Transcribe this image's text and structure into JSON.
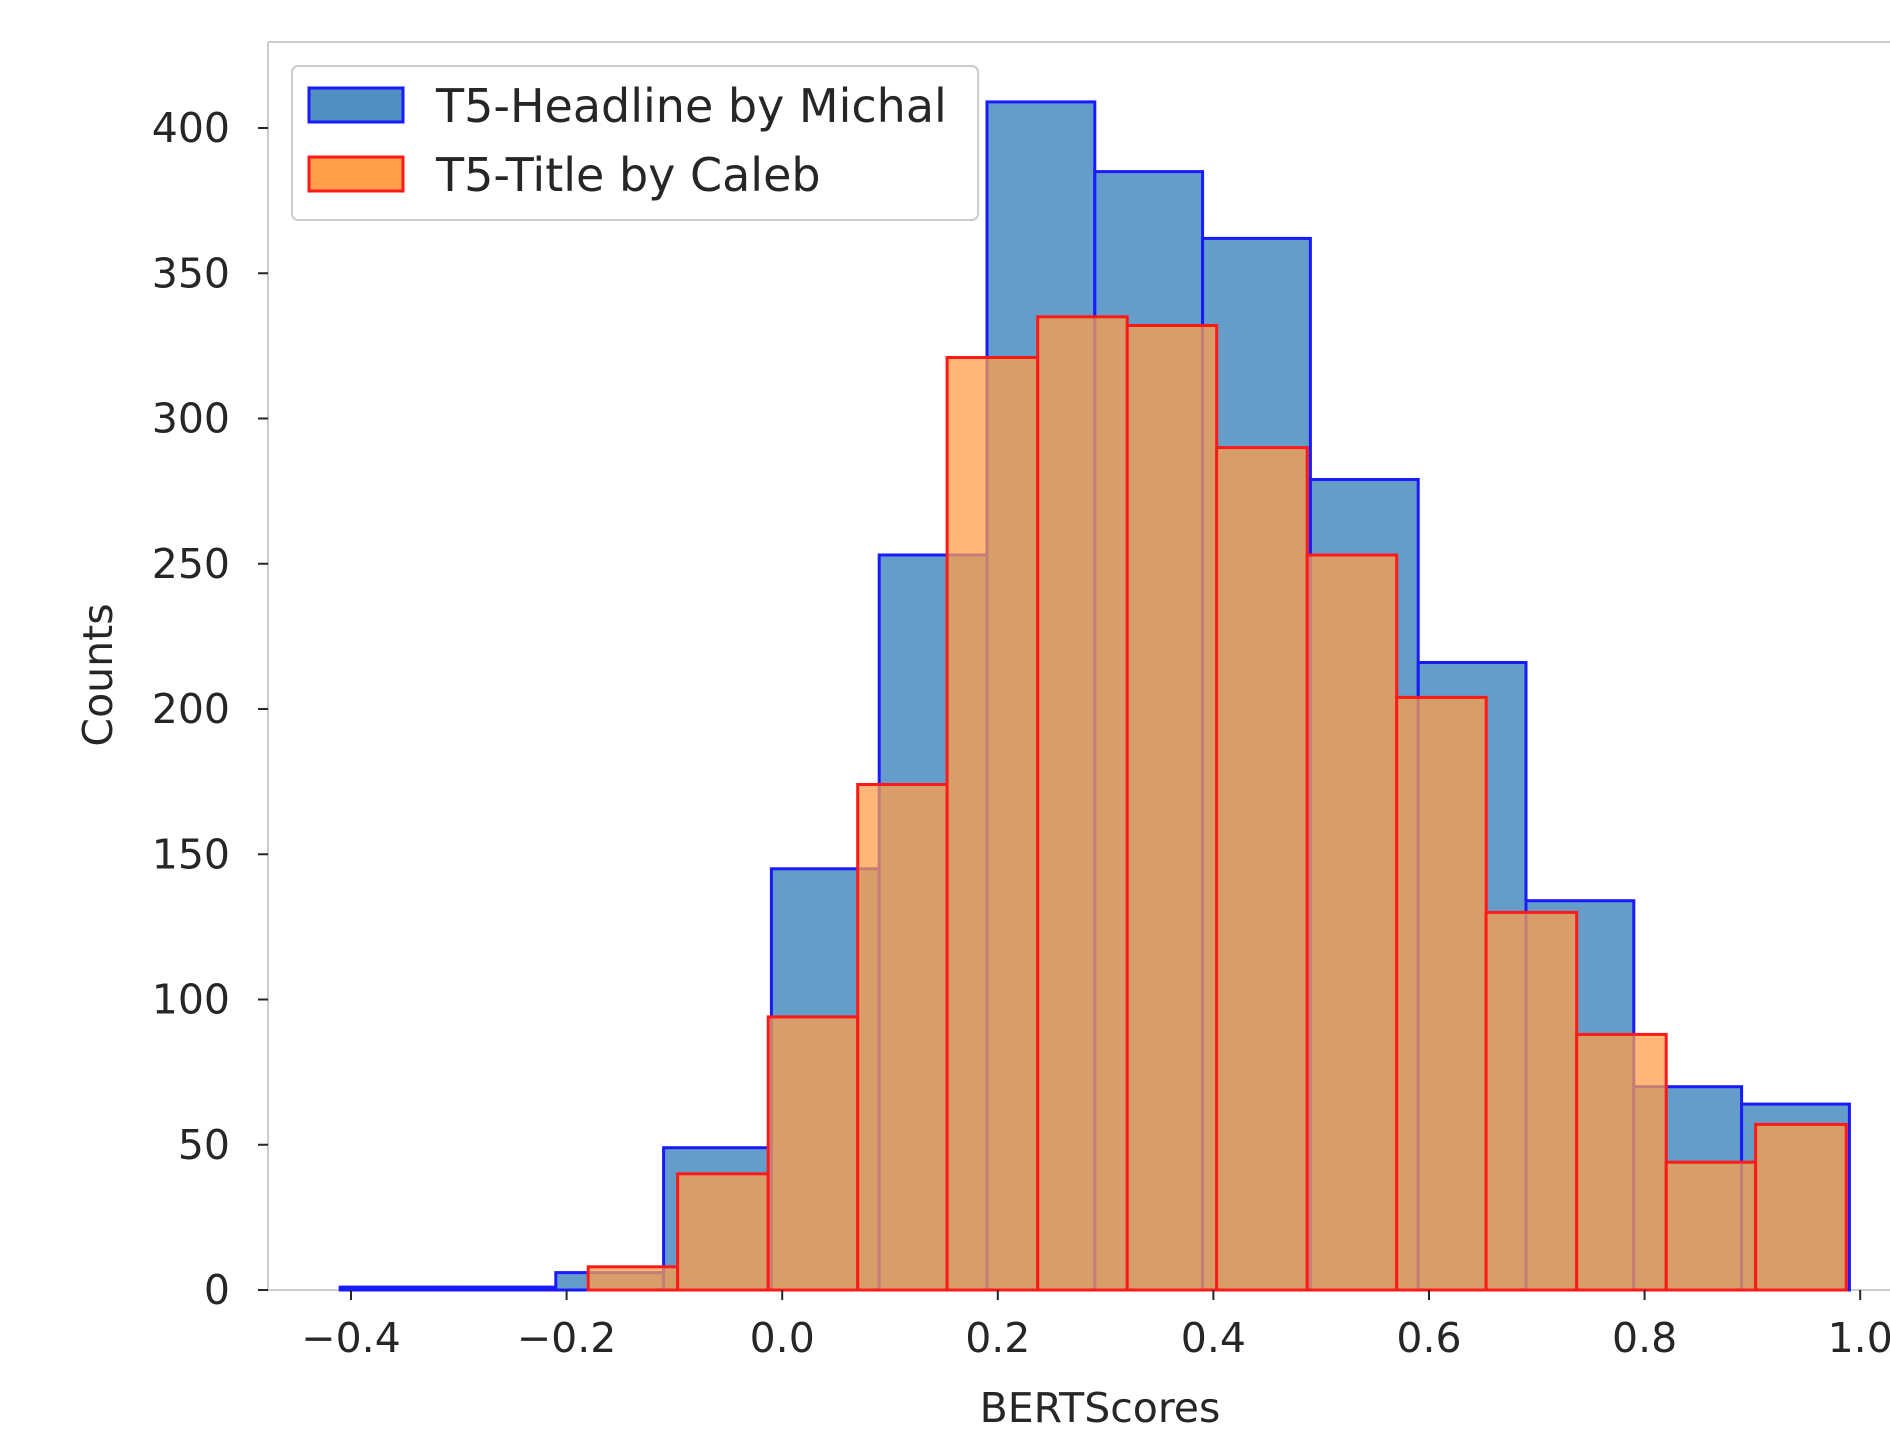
{
  "chart_data": {
    "type": "bar",
    "histogram": true,
    "title": "",
    "xlabel": "BERTScores",
    "ylabel": "Counts",
    "xlim": [
      -0.45,
      1.0
    ],
    "ylim": [
      0,
      430
    ],
    "xticks": [
      -0.4,
      -0.2,
      0.0,
      0.2,
      0.4,
      0.6,
      0.8,
      1.0
    ],
    "xtick_labels": [
      "−0.4",
      "−0.2",
      "0.0",
      "0.2",
      "0.4",
      "0.6",
      "0.8",
      "1.0"
    ],
    "yticks": [
      0,
      50,
      100,
      150,
      200,
      250,
      300,
      350,
      400
    ],
    "ytick_labels": [
      "0",
      "50",
      "100",
      "150",
      "200",
      "250",
      "300",
      "350",
      "400"
    ],
    "grid": false,
    "legend_position": "top-left",
    "series": [
      {
        "name": "T5-Headline by Michal",
        "fill": "#4f8fc1",
        "edge": "#1a1aff",
        "bin_edges": [
          -0.41,
          -0.31,
          -0.21,
          -0.11,
          -0.01,
          0.09,
          0.19,
          0.29,
          0.39,
          0.49,
          0.59,
          0.69,
          0.79,
          0.89,
          0.99
        ],
        "counts": [
          1,
          1,
          6,
          49,
          145,
          253,
          409,
          385,
          362,
          279,
          216,
          134,
          70,
          64
        ]
      },
      {
        "name": "T5-Title by Caleb",
        "fill": "#ff9f4a",
        "edge": "#ff1a1a",
        "bin_edges": [
          -0.18,
          -0.097,
          -0.013,
          0.07,
          0.153,
          0.237,
          0.32,
          0.403,
          0.487,
          0.57,
          0.653,
          0.737,
          0.82,
          0.903,
          0.987
        ],
        "counts": [
          8,
          40,
          94,
          174,
          321,
          335,
          332,
          290,
          253,
          204,
          130,
          88,
          44,
          57
        ]
      }
    ]
  }
}
